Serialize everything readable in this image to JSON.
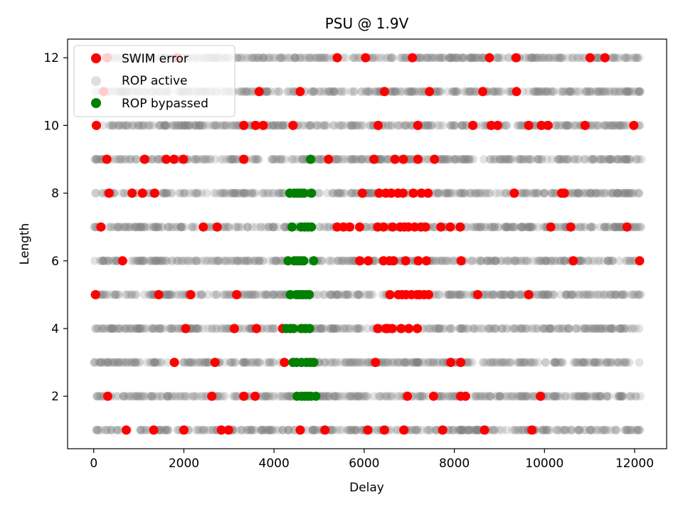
{
  "chart_data": {
    "type": "scatter",
    "title": "PSU @ 1.9V",
    "xlabel": "Delay",
    "ylabel": "Length",
    "xlim": [
      -580,
      12710
    ],
    "ylim": [
      0.45,
      12.55
    ],
    "xticks": [
      0,
      2000,
      4000,
      6000,
      8000,
      10000,
      12000
    ],
    "yticks": [
      2,
      4,
      6,
      8,
      10,
      12
    ],
    "legend_position": "top-left",
    "grid": false,
    "series": [
      {
        "name": "SWIM error",
        "color": "#ff0000",
        "points": [
          [
            300,
            12
          ],
          [
            1850,
            12
          ],
          [
            5400,
            12
          ],
          [
            6030,
            12
          ],
          [
            7070,
            12
          ],
          [
            8780,
            12
          ],
          [
            9370,
            12
          ],
          [
            11010,
            12
          ],
          [
            11340,
            12
          ],
          [
            220,
            11
          ],
          [
            3670,
            11
          ],
          [
            4580,
            11
          ],
          [
            6450,
            11
          ],
          [
            7450,
            11
          ],
          [
            8630,
            11
          ],
          [
            9380,
            11
          ],
          [
            60,
            10
          ],
          [
            3330,
            10
          ],
          [
            3590,
            10
          ],
          [
            3760,
            10
          ],
          [
            4420,
            10
          ],
          [
            6310,
            10
          ],
          [
            7190,
            10
          ],
          [
            8410,
            10
          ],
          [
            8820,
            10
          ],
          [
            8960,
            10
          ],
          [
            9650,
            10
          ],
          [
            9930,
            10
          ],
          [
            10080,
            10
          ],
          [
            10900,
            10
          ],
          [
            11980,
            10
          ],
          [
            290,
            9
          ],
          [
            1130,
            9
          ],
          [
            1610,
            9
          ],
          [
            1780,
            9
          ],
          [
            1990,
            9
          ],
          [
            3330,
            9
          ],
          [
            5210,
            9
          ],
          [
            6220,
            9
          ],
          [
            6680,
            9
          ],
          [
            6870,
            9
          ],
          [
            7190,
            9
          ],
          [
            7560,
            9
          ],
          [
            340,
            8
          ],
          [
            850,
            8
          ],
          [
            1080,
            8
          ],
          [
            1350,
            8
          ],
          [
            5960,
            8
          ],
          [
            6330,
            8
          ],
          [
            6480,
            8
          ],
          [
            6600,
            8
          ],
          [
            6750,
            8
          ],
          [
            6860,
            8
          ],
          [
            7090,
            8
          ],
          [
            7270,
            8
          ],
          [
            7420,
            8
          ],
          [
            9330,
            8
          ],
          [
            10380,
            8
          ],
          [
            10440,
            8
          ],
          [
            160,
            7
          ],
          [
            2430,
            7
          ],
          [
            2740,
            7
          ],
          [
            5400,
            7
          ],
          [
            5540,
            7
          ],
          [
            5680,
            7
          ],
          [
            5900,
            7
          ],
          [
            6300,
            7
          ],
          [
            6430,
            7
          ],
          [
            6630,
            7
          ],
          [
            6800,
            7
          ],
          [
            6890,
            7
          ],
          [
            6980,
            7
          ],
          [
            7120,
            7
          ],
          [
            7260,
            7
          ],
          [
            7360,
            7
          ],
          [
            7700,
            7
          ],
          [
            7910,
            7
          ],
          [
            8130,
            7
          ],
          [
            10140,
            7
          ],
          [
            10580,
            7
          ],
          [
            11830,
            7
          ],
          [
            640,
            6
          ],
          [
            5900,
            6
          ],
          [
            6090,
            6
          ],
          [
            6430,
            6
          ],
          [
            6560,
            6
          ],
          [
            6650,
            6
          ],
          [
            6920,
            6
          ],
          [
            7200,
            6
          ],
          [
            7380,
            6
          ],
          [
            8150,
            6
          ],
          [
            10640,
            6
          ],
          [
            12110,
            6
          ],
          [
            40,
            5
          ],
          [
            1440,
            5
          ],
          [
            2150,
            5
          ],
          [
            3170,
            5
          ],
          [
            6570,
            5
          ],
          [
            6760,
            5
          ],
          [
            6840,
            5
          ],
          [
            6930,
            5
          ],
          [
            7050,
            5
          ],
          [
            7170,
            5
          ],
          [
            7230,
            5
          ],
          [
            7330,
            5
          ],
          [
            7430,
            5
          ],
          [
            8520,
            5
          ],
          [
            9650,
            5
          ],
          [
            2040,
            4
          ],
          [
            3120,
            4
          ],
          [
            3610,
            4
          ],
          [
            4190,
            4
          ],
          [
            6300,
            4
          ],
          [
            6480,
            4
          ],
          [
            6530,
            4
          ],
          [
            6620,
            4
          ],
          [
            6820,
            4
          ],
          [
            6990,
            4
          ],
          [
            7180,
            4
          ],
          [
            1790,
            3
          ],
          [
            2690,
            3
          ],
          [
            4230,
            3
          ],
          [
            6250,
            3
          ],
          [
            7920,
            3
          ],
          [
            8140,
            3
          ],
          [
            310,
            2
          ],
          [
            2620,
            2
          ],
          [
            3330,
            2
          ],
          [
            3580,
            2
          ],
          [
            6960,
            2
          ],
          [
            7540,
            2
          ],
          [
            8140,
            2
          ],
          [
            8250,
            2
          ],
          [
            9910,
            2
          ],
          [
            720,
            1
          ],
          [
            1330,
            1
          ],
          [
            2000,
            1
          ],
          [
            2830,
            1
          ],
          [
            2990,
            1
          ],
          [
            4580,
            1
          ],
          [
            5130,
            1
          ],
          [
            6080,
            1
          ],
          [
            6450,
            1
          ],
          [
            6880,
            1
          ],
          [
            7740,
            1
          ],
          [
            8670,
            1
          ],
          [
            9720,
            1
          ]
        ]
      },
      {
        "name": "ROP active",
        "color": "#808080",
        "x_range": [
          0,
          12150
        ],
        "lengths": [
          1,
          2,
          3,
          4,
          5,
          6,
          7,
          8,
          9,
          10,
          11,
          12
        ]
      },
      {
        "name": "ROP bypassed",
        "color": "#008000",
        "points": [
          [
            4810,
            9
          ],
          [
            4350,
            8
          ],
          [
            4450,
            8
          ],
          [
            4520,
            8
          ],
          [
            4590,
            8
          ],
          [
            4660,
            8
          ],
          [
            4830,
            8
          ],
          [
            4400,
            7
          ],
          [
            4600,
            7
          ],
          [
            4680,
            7
          ],
          [
            4760,
            7
          ],
          [
            4830,
            7
          ],
          [
            4310,
            6
          ],
          [
            4450,
            6
          ],
          [
            4520,
            6
          ],
          [
            4590,
            6
          ],
          [
            4660,
            6
          ],
          [
            4880,
            6
          ],
          [
            4360,
            5
          ],
          [
            4500,
            5
          ],
          [
            4570,
            5
          ],
          [
            4640,
            5
          ],
          [
            4710,
            5
          ],
          [
            4780,
            5
          ],
          [
            4270,
            4
          ],
          [
            4360,
            4
          ],
          [
            4430,
            4
          ],
          [
            4610,
            4
          ],
          [
            4700,
            4
          ],
          [
            4790,
            4
          ],
          [
            4420,
            3
          ],
          [
            4500,
            3
          ],
          [
            4610,
            3
          ],
          [
            4720,
            3
          ],
          [
            4800,
            3
          ],
          [
            4880,
            3
          ],
          [
            4510,
            2
          ],
          [
            4610,
            2
          ],
          [
            4680,
            2
          ],
          [
            4750,
            2
          ],
          [
            4820,
            2
          ],
          [
            4930,
            2
          ]
        ]
      }
    ]
  }
}
